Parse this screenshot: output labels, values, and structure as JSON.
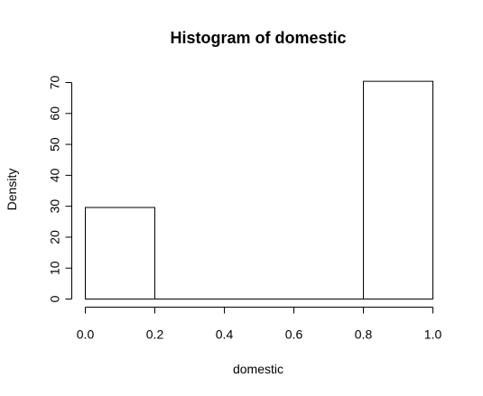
{
  "chart_data": {
    "type": "bar",
    "title": "Histogram of domestic",
    "xlabel": "domestic",
    "ylabel": "Density",
    "xlim": [
      0,
      1
    ],
    "ylim": [
      0,
      70
    ],
    "x_ticks": [
      0.0,
      0.2,
      0.4,
      0.6,
      0.8,
      1.0
    ],
    "x_tick_labels": [
      "0.0",
      "0.2",
      "0.4",
      "0.6",
      "0.8",
      "1.0"
    ],
    "y_ticks": [
      0,
      10,
      20,
      30,
      40,
      50,
      60,
      70
    ],
    "y_tick_labels": [
      "0",
      "10",
      "20",
      "30",
      "40",
      "50",
      "60",
      "70"
    ],
    "bins": [
      {
        "x0": 0.0,
        "x1": 0.2,
        "value": 29.6
      },
      {
        "x0": 0.2,
        "x1": 0.4,
        "value": 0
      },
      {
        "x0": 0.4,
        "x1": 0.6,
        "value": 0
      },
      {
        "x0": 0.6,
        "x1": 0.8,
        "value": 0
      },
      {
        "x0": 0.8,
        "x1": 1.0,
        "value": 70.4
      }
    ],
    "grid": false,
    "legend": "none"
  }
}
